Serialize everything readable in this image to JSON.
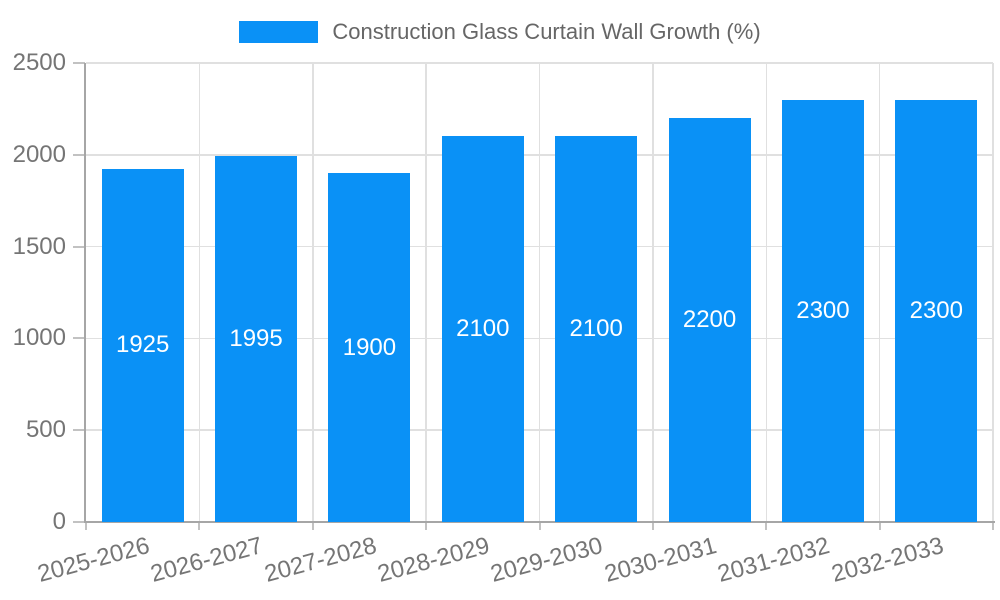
{
  "legend": {
    "label": "Construction Glass Curtain Wall Growth (%)"
  },
  "colors": {
    "bar": "#0A91F6",
    "grid": "#E0E0E0",
    "tick": "#C2C2C2",
    "axis": "#A6A6A6",
    "axis_label": "#757575",
    "legend_text": "#666666",
    "bar_label": "#FFFFFF",
    "background": "#FFFFFF"
  },
  "chart_data": {
    "type": "bar",
    "title": "",
    "series_name": "Construction Glass Curtain Wall Growth (%)",
    "categories": [
      "2025-2026",
      "2026-2027",
      "2027-2028",
      "2028-2029",
      "2029-2030",
      "2030-2031",
      "2031-2032",
      "2032-2033"
    ],
    "values": [
      1925,
      1995,
      1900,
      2100,
      2100,
      2200,
      2300,
      2300
    ],
    "xlabel": "",
    "ylabel": "",
    "ylim": [
      0,
      2500
    ],
    "yticks": [
      0,
      500,
      1000,
      1500,
      2000,
      2500
    ],
    "ytick_labels": [
      "0",
      "500",
      "1000",
      "1500",
      "2000",
      "2500"
    ],
    "grid": true,
    "legend_position": "top-center",
    "bar_label_position": "inside-center",
    "x_tick_rotation_deg": -15
  }
}
